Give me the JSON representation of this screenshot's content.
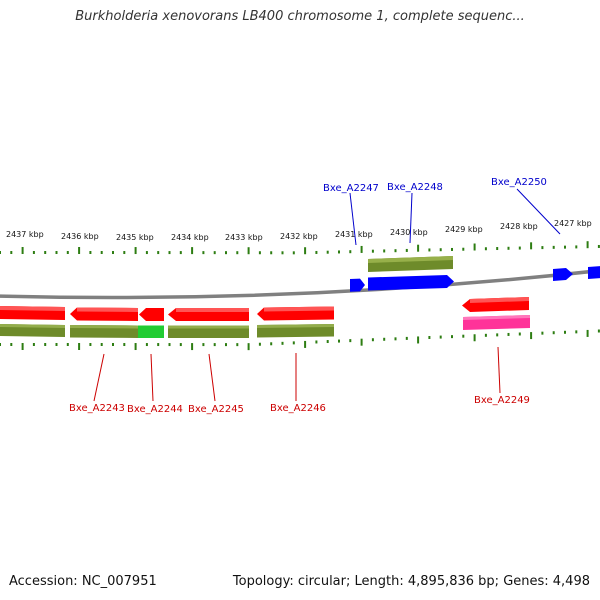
{
  "header": {
    "title": "Burkholderia xenovorans LB400 chromosome 1, complete sequenc..."
  },
  "footer": {
    "accession_label": "Accession: NC_007951",
    "topology": "Topology: circular;",
    "length": "Length: 4,895,836 bp;",
    "genes": "Genes: 4,498"
  },
  "colors": {
    "forward_cds": "#0000ff",
    "reverse_cds": "#ff0000",
    "gene_bar": "#6e8b2a",
    "highlight_gene": "#22cc33",
    "pseudo_or_rna": "#ff3399",
    "tick": "#2d7d12",
    "label_forward": "#0000cc",
    "label_reverse": "#cc0000",
    "backbone": "#808080"
  },
  "scale_labels": [
    "2437 kbp",
    "2436 kbp",
    "2435 kbp",
    "2434 kbp",
    "2433 kbp",
    "2432 kbp",
    "2431 kbp",
    "2430 kbp",
    "2429 kbp",
    "2428 kbp",
    "2427 kbp"
  ],
  "gene_labels": [
    {
      "id": "Bxe_A2247",
      "strand": "forward"
    },
    {
      "id": "Bxe_A2248",
      "strand": "forward"
    },
    {
      "id": "Bxe_A2250",
      "strand": "forward"
    },
    {
      "id": "Bxe_A2243",
      "strand": "reverse"
    },
    {
      "id": "Bxe_A2244",
      "strand": "reverse"
    },
    {
      "id": "Bxe_A2245",
      "strand": "reverse"
    },
    {
      "id": "Bxe_A2246",
      "strand": "reverse"
    },
    {
      "id": "Bxe_A2249",
      "strand": "reverse"
    }
  ]
}
